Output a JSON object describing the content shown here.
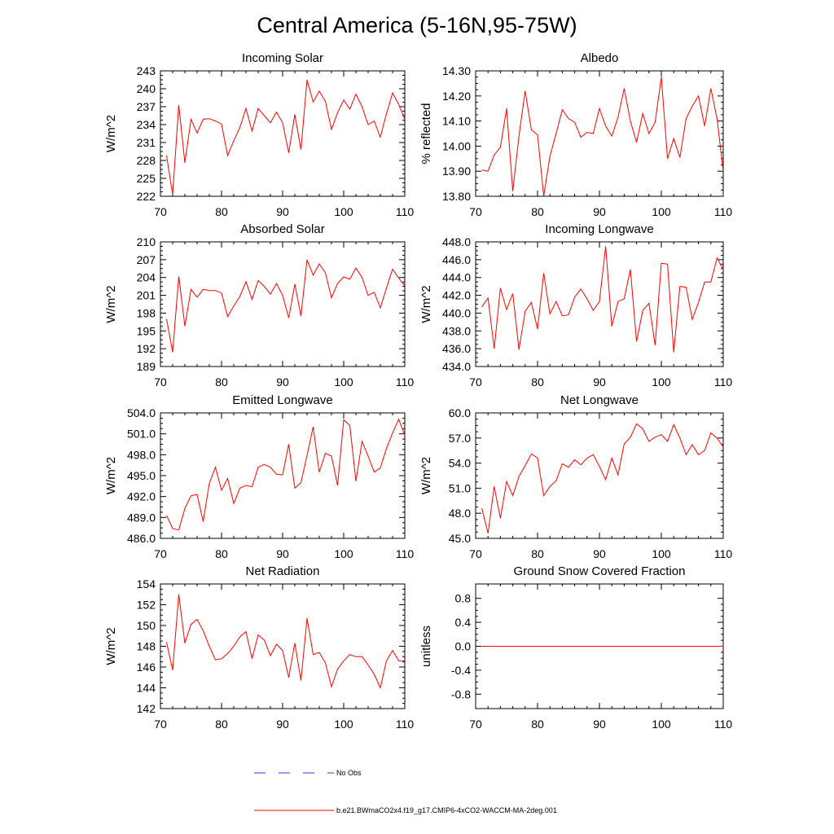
{
  "figure_title": "Central America (5-16N,95-75W)",
  "legend": [
    {
      "label": "No Obs",
      "color": "#3333cc",
      "dash": true
    },
    {
      "label": "b.e21.BWmaCO2x4.f19_g17.CMIP6-4xCO2-WACCM-MA-2deg.001",
      "color": "#ff0000",
      "dash": false
    }
  ],
  "chart_data": [
    {
      "type": "line",
      "title": "Incoming Solar",
      "ylabel": "W/m^2",
      "xlim": [
        70,
        110
      ],
      "xticks": [
        70,
        80,
        90,
        100,
        110
      ],
      "xticklabels": [
        "70",
        "80",
        "90",
        "100",
        "110"
      ],
      "ylim": [
        222,
        243
      ],
      "yticks": [
        222,
        225,
        228,
        231,
        234,
        237,
        240,
        243
      ],
      "yticklabels": [
        "222",
        "225",
        "228",
        "231",
        "234",
        "237",
        "240",
        "243"
      ],
      "x": [
        71,
        72,
        73,
        74,
        75,
        76,
        77,
        78,
        79,
        80,
        81,
        82,
        83,
        84,
        85,
        86,
        87,
        88,
        89,
        90,
        91,
        92,
        93,
        94,
        95,
        96,
        97,
        98,
        99,
        100,
        101,
        102,
        103,
        104,
        105,
        106,
        107,
        108,
        109,
        110
      ],
      "series": [
        {
          "name": "b.e21.BWmaCO2x4.f19_g17.CMIP6-4xCO2-WACCM-MA-2deg.001",
          "color": "#ff0000",
          "values": [
            228.8,
            222.3,
            237.3,
            227.6,
            234.9,
            232.6,
            234.9,
            235.0,
            234.6,
            234.1,
            228.8,
            231.3,
            233.5,
            236.7,
            232.9,
            236.7,
            235.5,
            234.3,
            236.1,
            234.3,
            229.3,
            235.7,
            229.8,
            241.5,
            237.8,
            239.6,
            237.9,
            233.2,
            236.0,
            238.1,
            236.6,
            239.1,
            237.0,
            234.0,
            234.6,
            231.9,
            235.8,
            239.3,
            237.4,
            234.9
          ]
        }
      ]
    },
    {
      "type": "line",
      "title": "Albedo",
      "ylabel": "% reflected",
      "xlim": [
        70,
        110
      ],
      "xticks": [
        70,
        80,
        90,
        100,
        110
      ],
      "xticklabels": [
        "70",
        "80",
        "90",
        "100",
        "110"
      ],
      "ylim": [
        13.8,
        14.3
      ],
      "yticks": [
        13.8,
        13.9,
        14.0,
        14.1,
        14.2,
        14.3
      ],
      "yticklabels": [
        "13.80",
        "13.90",
        "14.00",
        "14.10",
        "14.20",
        "14.30"
      ],
      "x": [
        71,
        72,
        73,
        74,
        75,
        76,
        77,
        78,
        79,
        80,
        81,
        82,
        83,
        84,
        85,
        86,
        87,
        88,
        89,
        90,
        91,
        92,
        93,
        94,
        95,
        96,
        97,
        98,
        99,
        100,
        101,
        102,
        103,
        104,
        105,
        106,
        107,
        108,
        109,
        110
      ],
      "series": [
        {
          "name": "b.e21.BWmaCO2x4.f19_g17.CMIP6-4xCO2-WACCM-MA-2deg.001",
          "color": "#ff0000",
          "values": [
            13.905,
            13.9,
            13.965,
            13.995,
            14.15,
            13.82,
            14.04,
            14.22,
            14.065,
            14.045,
            13.8,
            13.96,
            14.05,
            14.145,
            14.11,
            14.095,
            14.035,
            14.055,
            14.05,
            14.15,
            14.08,
            14.04,
            14.115,
            14.23,
            14.1,
            14.015,
            14.13,
            14.05,
            14.095,
            14.275,
            13.95,
            14.03,
            13.955,
            14.11,
            14.16,
            14.2,
            14.08,
            14.23,
            14.11,
            13.9
          ]
        }
      ]
    },
    {
      "type": "line",
      "title": "Absorbed Solar",
      "ylabel": "W/m^2",
      "xlim": [
        70,
        110
      ],
      "xticks": [
        70,
        80,
        90,
        100,
        110
      ],
      "xticklabels": [
        "70",
        "80",
        "90",
        "100",
        "110"
      ],
      "ylim": [
        189,
        210
      ],
      "yticks": [
        189,
        192,
        195,
        198,
        201,
        204,
        207,
        210
      ],
      "yticklabels": [
        "189",
        "192",
        "195",
        "198",
        "201",
        "204",
        "207",
        "210"
      ],
      "x": [
        71,
        72,
        73,
        74,
        75,
        76,
        77,
        78,
        79,
        80,
        81,
        82,
        83,
        84,
        85,
        86,
        87,
        88,
        89,
        90,
        91,
        92,
        93,
        94,
        95,
        96,
        97,
        98,
        99,
        100,
        101,
        102,
        103,
        104,
        105,
        106,
        107,
        108,
        109,
        110
      ],
      "series": [
        {
          "name": "b.e21.BWmaCO2x4.f19_g17.CMIP6-4xCO2-WACCM-MA-2deg.001",
          "color": "#ff0000",
          "values": [
            197.0,
            191.4,
            204.2,
            195.8,
            202.0,
            200.7,
            202.0,
            201.8,
            201.8,
            201.4,
            197.4,
            199.2,
            200.8,
            203.3,
            200.3,
            203.5,
            202.5,
            201.2,
            203.0,
            201.0,
            197.2,
            202.9,
            197.5,
            207.0,
            204.4,
            206.3,
            204.8,
            200.6,
            203.0,
            204.1,
            203.7,
            205.6,
            204.0,
            201.0,
            201.5,
            198.9,
            202.2,
            205.4,
            203.9,
            202.6
          ]
        }
      ]
    },
    {
      "type": "line",
      "title": "Incoming Longwave",
      "ylabel": "W/m^2",
      "xlim": [
        70,
        110
      ],
      "xticks": [
        70,
        80,
        90,
        100,
        110
      ],
      "xticklabels": [
        "70",
        "80",
        "90",
        "100",
        "110"
      ],
      "ylim": [
        434,
        448
      ],
      "yticks": [
        434,
        436,
        438,
        440,
        442,
        444,
        446,
        448
      ],
      "yticklabels": [
        "434.0",
        "436.0",
        "438.0",
        "440.0",
        "442.0",
        "444.0",
        "446.0",
        "448.0"
      ],
      "x": [
        71,
        72,
        73,
        74,
        75,
        76,
        77,
        78,
        79,
        80,
        81,
        82,
        83,
        84,
        85,
        86,
        87,
        88,
        89,
        90,
        91,
        92,
        93,
        94,
        95,
        96,
        97,
        98,
        99,
        100,
        101,
        102,
        103,
        104,
        105,
        106,
        107,
        108,
        109,
        110
      ],
      "series": [
        {
          "name": "b.e21.BWmaCO2x4.f19_g17.CMIP6-4xCO2-WACCM-MA-2deg.001",
          "color": "#ff0000",
          "values": [
            440.7,
            441.7,
            436.0,
            442.8,
            440.4,
            442.2,
            435.9,
            440.2,
            441.2,
            438.2,
            444.5,
            439.9,
            441.3,
            439.7,
            439.8,
            441.8,
            442.7,
            441.6,
            440.3,
            441.3,
            447.5,
            438.5,
            441.3,
            441.6,
            444.9,
            436.8,
            440.3,
            441.1,
            436.4,
            445.6,
            445.5,
            435.6,
            443.0,
            442.9,
            439.3,
            441.2,
            443.5,
            443.5,
            446.2,
            444.9
          ]
        }
      ]
    },
    {
      "type": "line",
      "title": "Emitted Longwave",
      "ylabel": "W/m^2",
      "xlim": [
        70,
        110
      ],
      "xticks": [
        70,
        80,
        90,
        100,
        110
      ],
      "xticklabels": [
        "70",
        "80",
        "90",
        "100",
        "110"
      ],
      "ylim": [
        486,
        504
      ],
      "yticks": [
        486,
        489,
        492,
        495,
        498,
        501,
        504
      ],
      "yticklabels": [
        "486.0",
        "489.0",
        "492.0",
        "495.0",
        "498.0",
        "501.0",
        "504.0"
      ],
      "x": [
        71,
        72,
        73,
        74,
        75,
        76,
        77,
        78,
        79,
        80,
        81,
        82,
        83,
        84,
        85,
        86,
        87,
        88,
        89,
        90,
        91,
        92,
        93,
        94,
        95,
        96,
        97,
        98,
        99,
        100,
        101,
        102,
        103,
        104,
        105,
        106,
        107,
        108,
        109,
        110
      ],
      "series": [
        {
          "name": "b.e21.BWmaCO2x4.f19_g17.CMIP6-4xCO2-WACCM-MA-2deg.001",
          "color": "#ff0000",
          "values": [
            489.3,
            487.4,
            487.2,
            490.3,
            492.1,
            492.3,
            488.4,
            493.9,
            496.2,
            492.9,
            494.6,
            491.0,
            493.2,
            493.6,
            493.4,
            496.2,
            496.6,
            496.2,
            495.2,
            495.1,
            499.5,
            493.2,
            494.0,
            497.9,
            502.0,
            495.5,
            498.2,
            497.8,
            493.6,
            503.0,
            502.2,
            494.2,
            499.9,
            497.8,
            495.5,
            496.1,
            498.9,
            501.1,
            503.1,
            500.8
          ]
        }
      ]
    },
    {
      "type": "line",
      "title": "Net Longwave",
      "ylabel": "W/m^2",
      "xlim": [
        70,
        110
      ],
      "xticks": [
        70,
        80,
        90,
        100,
        110
      ],
      "xticklabels": [
        "70",
        "80",
        "90",
        "100",
        "110"
      ],
      "ylim": [
        45,
        60
      ],
      "yticks": [
        45,
        48,
        51,
        54,
        57,
        60
      ],
      "yticklabels": [
        "45.0",
        "48.0",
        "51.0",
        "54.0",
        "57.0",
        "60.0"
      ],
      "x": [
        71,
        72,
        73,
        74,
        75,
        76,
        77,
        78,
        79,
        80,
        81,
        82,
        83,
        84,
        85,
        86,
        87,
        88,
        89,
        90,
        91,
        92,
        93,
        94,
        95,
        96,
        97,
        98,
        99,
        100,
        101,
        102,
        103,
        104,
        105,
        106,
        107,
        108,
        109,
        110
      ],
      "series": [
        {
          "name": "b.e21.BWmaCO2x4.f19_g17.CMIP6-4xCO2-WACCM-MA-2deg.001",
          "color": "#ff0000",
          "values": [
            48.6,
            45.6,
            51.2,
            47.4,
            51.8,
            50.1,
            52.4,
            53.7,
            55.1,
            54.6,
            50.1,
            51.2,
            51.9,
            53.9,
            53.5,
            54.4,
            53.8,
            54.6,
            55.0,
            53.6,
            52.0,
            54.6,
            52.6,
            56.3,
            57.1,
            58.7,
            58.1,
            56.6,
            57.1,
            57.4,
            56.6,
            58.6,
            57.0,
            55.0,
            56.2,
            55.0,
            55.5,
            57.6,
            57.0,
            55.9
          ]
        }
      ]
    },
    {
      "type": "line",
      "title": "Net Radiation",
      "ylabel": "W/m^2",
      "xlim": [
        70,
        110
      ],
      "xticks": [
        70,
        80,
        90,
        100,
        110
      ],
      "xticklabels": [
        "70",
        "80",
        "90",
        "100",
        "110"
      ],
      "ylim": [
        142,
        154
      ],
      "yticks": [
        142,
        144,
        146,
        148,
        150,
        152,
        154
      ],
      "yticklabels": [
        "142",
        "144",
        "146",
        "148",
        "150",
        "152",
        "154"
      ],
      "x": [
        71,
        72,
        73,
        74,
        75,
        76,
        77,
        78,
        79,
        80,
        81,
        82,
        83,
        84,
        85,
        86,
        87,
        88,
        89,
        90,
        91,
        92,
        93,
        94,
        95,
        96,
        97,
        98,
        99,
        100,
        101,
        102,
        103,
        104,
        105,
        106,
        107,
        108,
        109,
        110
      ],
      "series": [
        {
          "name": "b.e21.BWmaCO2x4.f19_g17.CMIP6-4xCO2-WACCM-MA-2deg.001",
          "color": "#ff0000",
          "values": [
            148.4,
            145.7,
            153.0,
            148.3,
            150.1,
            150.6,
            149.5,
            148.0,
            146.7,
            146.8,
            147.3,
            148.0,
            148.9,
            149.4,
            146.8,
            149.1,
            148.6,
            147.1,
            148.2,
            147.6,
            145.0,
            148.3,
            144.7,
            150.7,
            147.2,
            147.4,
            146.4,
            144.1,
            145.8,
            146.6,
            147.2,
            147.0,
            147.0,
            146.2,
            145.3,
            144.0,
            146.6,
            147.6,
            146.6,
            146.6
          ]
        }
      ]
    },
    {
      "type": "line",
      "title": "Ground Snow Covered Fraction",
      "ylabel": "unitless",
      "xlim": [
        70,
        110
      ],
      "xticks": [
        70,
        80,
        90,
        100,
        110
      ],
      "xticklabels": [
        "70",
        "80",
        "90",
        "100",
        "110"
      ],
      "ylim": [
        -1.04,
        1.04
      ],
      "yticks": [
        -0.8,
        -0.4,
        0.0,
        0.4,
        0.8
      ],
      "yticklabels": [
        "-0.8",
        "-0.4",
        "0.0",
        "0.4",
        "0.8"
      ],
      "x": [
        71,
        72,
        73,
        74,
        75,
        76,
        77,
        78,
        79,
        80,
        81,
        82,
        83,
        84,
        85,
        86,
        87,
        88,
        89,
        90,
        91,
        92,
        93,
        94,
        95,
        96,
        97,
        98,
        99,
        100,
        101,
        102,
        103,
        104,
        105,
        106,
        107,
        108,
        109,
        110
      ],
      "series": [
        {
          "name": "b.e21.BWmaCO2x4.f19_g17.CMIP6-4xCO2-WACCM-MA-2deg.001",
          "color": "#ff0000",
          "values": [
            0,
            0,
            0,
            0,
            0,
            0,
            0,
            0,
            0,
            0,
            0,
            0,
            0,
            0,
            0,
            0,
            0,
            0,
            0,
            0,
            0,
            0,
            0,
            0,
            0,
            0,
            0,
            0,
            0,
            0,
            0,
            0,
            0,
            0,
            0,
            0,
            0,
            0,
            0,
            0
          ]
        }
      ]
    }
  ]
}
